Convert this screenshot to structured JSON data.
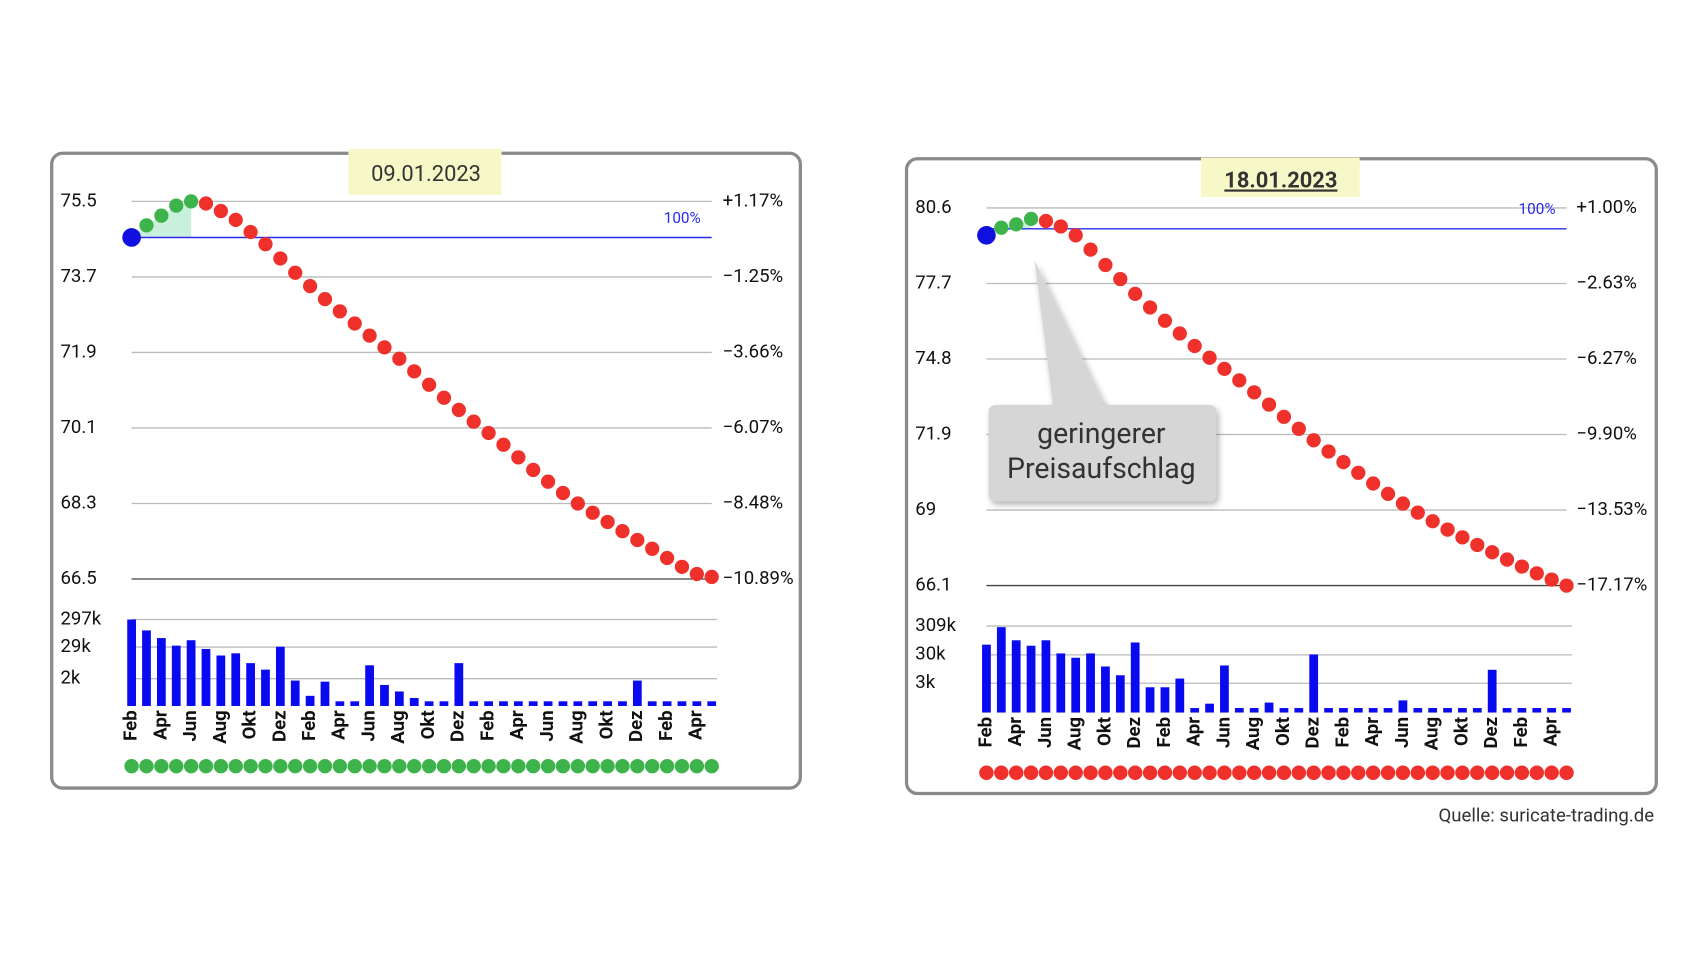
{
  "chart_data": [
    {
      "type": "line",
      "title": "09.01.2023",
      "categories": [
        "Feb",
        null,
        "Apr",
        null,
        "Jun",
        null,
        "Aug",
        null,
        "Okt",
        null,
        "Dez",
        null,
        "Feb",
        null,
        "Apr",
        null,
        "Jun",
        null,
        "Aug",
        null,
        "Okt",
        null,
        "Dez",
        null,
        "Feb",
        null,
        "Apr",
        null,
        "Jun",
        null,
        "Aug",
        null,
        "Okt",
        null,
        "Dez",
        null,
        "Feb",
        null,
        "Apr",
        null
      ],
      "values": [
        74.64,
        74.93,
        75.16,
        75.4,
        75.5,
        75.45,
        75.27,
        75.06,
        74.77,
        74.48,
        74.14,
        73.8,
        73.48,
        73.17,
        72.88,
        72.59,
        72.3,
        72.02,
        71.75,
        71.45,
        71.13,
        70.82,
        70.53,
        70.25,
        69.98,
        69.7,
        69.4,
        69.1,
        68.82,
        68.55,
        68.3,
        68.08,
        67.86,
        67.64,
        67.43,
        67.22,
        67.0,
        66.79,
        66.62,
        66.55
      ],
      "marker_colors": [
        "#1010e0",
        "#3cb44b",
        "#3cb44b",
        "#3cb44b",
        "#3cb44b",
        "#f0302a",
        "#f0302a",
        "#f0302a",
        "#f0302a",
        "#f0302a",
        "#f0302a",
        "#f0302a",
        "#f0302a",
        "#f0302a",
        "#f0302a",
        "#f0302a",
        "#f0302a",
        "#f0302a",
        "#f0302a",
        "#f0302a",
        "#f0302a",
        "#f0302a",
        "#f0302a",
        "#f0302a",
        "#f0302a",
        "#f0302a",
        "#f0302a",
        "#f0302a",
        "#f0302a",
        "#f0302a",
        "#f0302a",
        "#f0302a",
        "#f0302a",
        "#f0302a",
        "#f0302a",
        "#f0302a",
        "#f0302a",
        "#f0302a",
        "#f0302a",
        "#f0302a"
      ],
      "reference_value": 74.64,
      "reference_label": "100%",
      "reference_color": "#2a2af0",
      "fill_color": "#c9f0dc",
      "ylim": [
        66.5,
        75.5
      ],
      "yticks": [
        75.5,
        73.7,
        71.9,
        70.1,
        68.3,
        66.5
      ],
      "y2lim": [
        -10.89,
        1.17
      ],
      "y2ticks": [
        {
          "value": 1.17,
          "label": "+1.17%"
        },
        {
          "value": -1.25,
          "label": "−1.25%"
        },
        {
          "value": -3.66,
          "label": "−3.66%"
        },
        {
          "value": -6.07,
          "label": "−6.07%"
        },
        {
          "value": -8.48,
          "label": "−8.48%"
        },
        {
          "value": -10.89,
          "label": "−10.89%"
        }
      ],
      "grid": true,
      "volume": {
        "color": "#0a0af0",
        "log": true,
        "ylim": [
          200,
          297000
        ],
        "yticks": [
          {
            "value": 297000,
            "label": "297k"
          },
          {
            "value": 29000,
            "label": "29k"
          },
          {
            "value": 2000,
            "label": "2k"
          }
        ],
        "values": [
          297000,
          118000,
          62000,
          32600,
          51600,
          24700,
          14200,
          17100,
          7460,
          4300,
          29700,
          1710,
          471,
          1560,
          297,
          297,
          6210,
          1180,
          681,
          392,
          297,
          297,
          7460,
          297,
          297,
          297,
          297,
          297,
          297,
          297,
          297,
          297,
          297,
          297,
          1710,
          297,
          297,
          297,
          297,
          297
        ]
      },
      "status_color": "#3cb44b"
    },
    {
      "type": "line",
      "title": "18.01.2023",
      "categories": [
        "Feb",
        null,
        "Apr",
        null,
        "Jun",
        null,
        "Aug",
        null,
        "Okt",
        null,
        "Dez",
        null,
        "Feb",
        null,
        "Apr",
        null,
        "Jun",
        null,
        "Aug",
        null,
        "Okt",
        null,
        "Dez",
        null,
        "Feb",
        null,
        "Apr",
        null,
        "Jun",
        null,
        "Aug",
        null,
        "Okt",
        null,
        "Dez",
        null,
        "Feb",
        null,
        "Apr",
        null
      ],
      "values": [
        79.55,
        79.84,
        79.97,
        80.18,
        80.1,
        79.89,
        79.55,
        79.0,
        78.41,
        77.87,
        77.3,
        76.78,
        76.27,
        75.78,
        75.3,
        74.85,
        74.42,
        73.98,
        73.52,
        73.05,
        72.58,
        72.12,
        71.68,
        71.25,
        70.84,
        70.43,
        70.02,
        69.62,
        69.25,
        68.9,
        68.57,
        68.25,
        67.95,
        67.66,
        67.38,
        67.1,
        66.83,
        66.57,
        66.33,
        66.1
      ],
      "marker_colors": [
        "#1010e0",
        "#3cb44b",
        "#3cb44b",
        "#3cb44b",
        "#f0302a",
        "#f0302a",
        "#f0302a",
        "#f0302a",
        "#f0302a",
        "#f0302a",
        "#f0302a",
        "#f0302a",
        "#f0302a",
        "#f0302a",
        "#f0302a",
        "#f0302a",
        "#f0302a",
        "#f0302a",
        "#f0302a",
        "#f0302a",
        "#f0302a",
        "#f0302a",
        "#f0302a",
        "#f0302a",
        "#f0302a",
        "#f0302a",
        "#f0302a",
        "#f0302a",
        "#f0302a",
        "#f0302a",
        "#f0302a",
        "#f0302a",
        "#f0302a",
        "#f0302a",
        "#f0302a",
        "#f0302a",
        "#f0302a",
        "#f0302a",
        "#f0302a",
        "#f0302a"
      ],
      "reference_value": 79.8,
      "reference_label": "100%",
      "reference_color": "#2a2af0",
      "fill_color": "#c9f0dc",
      "ylim": [
        66.1,
        80.6
      ],
      "yticks": [
        80.6,
        77.7,
        74.8,
        71.9,
        69.0,
        66.1
      ],
      "y2lim": [
        -17.17,
        1.0
      ],
      "y2ticks": [
        {
          "value": 1.0,
          "label": "+1.00%"
        },
        {
          "value": -2.63,
          "label": "−2.63%"
        },
        {
          "value": -6.27,
          "label": "−6.27%"
        },
        {
          "value": -9.9,
          "label": "−9.90%"
        },
        {
          "value": -13.53,
          "label": "−13.53%"
        },
        {
          "value": -17.17,
          "label": "−17.17%"
        }
      ],
      "ytick_labels": [
        "80.6",
        "77.7",
        "74.8",
        "71.9",
        "69.0",
        "66.1"
      ],
      "grid": true,
      "volume": {
        "color": "#0a0af0",
        "log": true,
        "ylim": [
          280,
          309000
        ],
        "yticks": [
          {
            "value": 309000,
            "label": "309k"
          },
          {
            "value": 30000,
            "label": "30k"
          },
          {
            "value": 3000,
            "label": "3k"
          }
        ],
        "values": [
          68500,
          283000,
          97700,
          62800,
          97700,
          33700,
          23700,
          33700,
          11700,
          5740,
          81800,
          2170,
          2170,
          4400,
          403,
          574,
          12700,
          403,
          403,
          628,
          403,
          403,
          30900,
          403,
          403,
          403,
          403,
          403,
          750,
          403,
          403,
          403,
          403,
          403,
          8950,
          403,
          403,
          403,
          403,
          403
        ]
      },
      "status_color": "#f0302a",
      "annotation": [
        "geringerer",
        "Preisaufschlag"
      ]
    }
  ],
  "source": "Quelle: suricate-trading.de"
}
